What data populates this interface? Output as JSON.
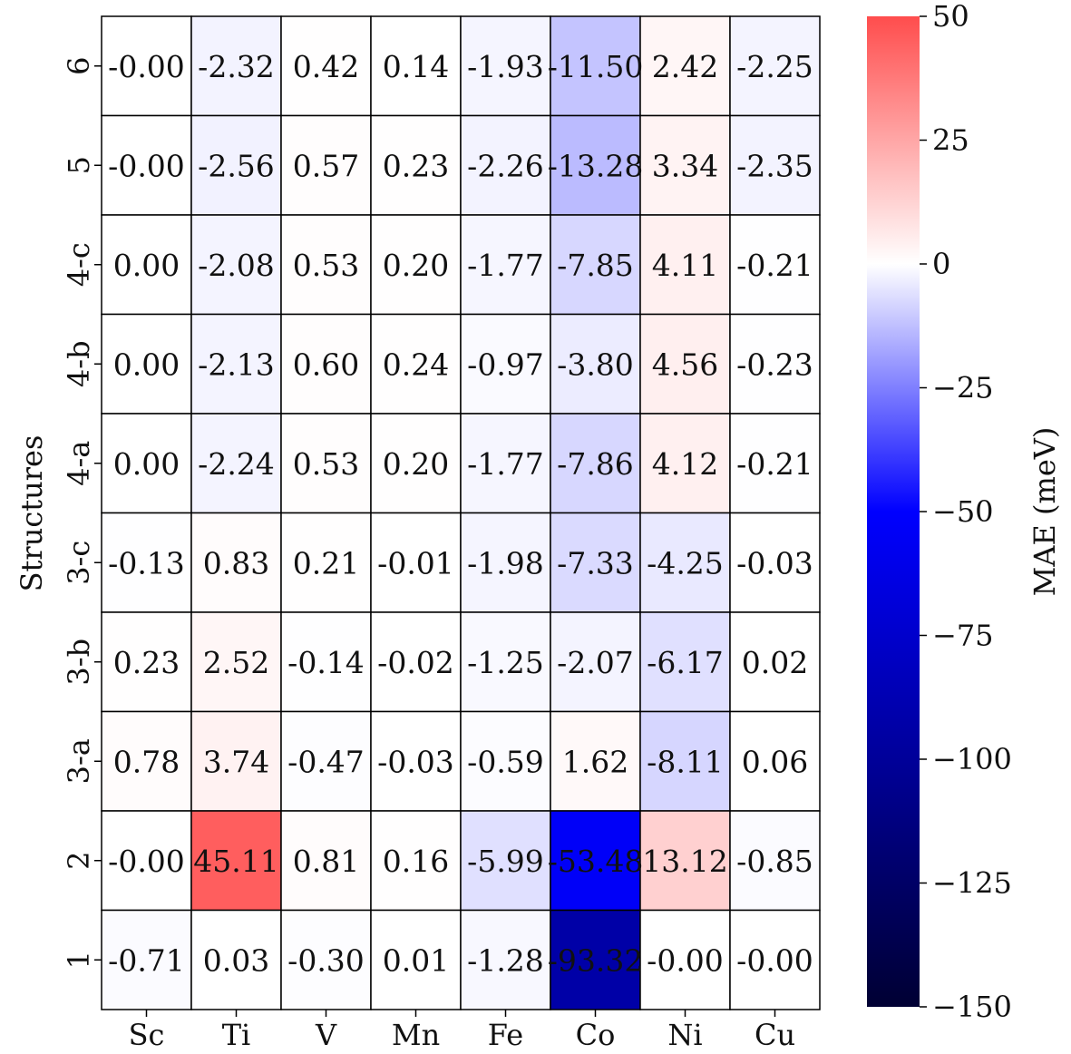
{
  "chart_data": {
    "type": "heatmap",
    "title": "",
    "xlabel": "",
    "ylabel": "Structures",
    "x_categories": [
      "Sc",
      "Ti",
      "V",
      "Mn",
      "Fe",
      "Co",
      "Ni",
      "Cu"
    ],
    "y_categories": [
      "6",
      "5",
      "4-c",
      "4-b",
      "4-a",
      "3-c",
      "3-b",
      "3-a",
      "2",
      "1"
    ],
    "values": [
      [
        "-0.00",
        "-2.32",
        "0.42",
        "0.14",
        "-1.93",
        "-11.50",
        "2.42",
        "-2.25"
      ],
      [
        "-0.00",
        "-2.56",
        "0.57",
        "0.23",
        "-2.26",
        "-13.28",
        "3.34",
        "-2.35"
      ],
      [
        "0.00",
        "-2.08",
        "0.53",
        "0.20",
        "-1.77",
        "-7.85",
        "4.11",
        "-0.21"
      ],
      [
        "0.00",
        "-2.13",
        "0.60",
        "0.24",
        "-0.97",
        "-3.80",
        "4.56",
        "-0.23"
      ],
      [
        "0.00",
        "-2.24",
        "0.53",
        "0.20",
        "-1.77",
        "-7.86",
        "4.12",
        "-0.21"
      ],
      [
        "-0.13",
        "0.83",
        "0.21",
        "-0.01",
        "-1.98",
        "-7.33",
        "-4.25",
        "-0.03"
      ],
      [
        "0.23",
        "2.52",
        "-0.14",
        "-0.02",
        "-1.25",
        "-2.07",
        "-6.17",
        "0.02"
      ],
      [
        "0.78",
        "3.74",
        "-0.47",
        "-0.03",
        "-0.59",
        "1.62",
        "-8.11",
        "0.06"
      ],
      [
        "-0.00",
        "45.11",
        "0.81",
        "0.16",
        "-5.99",
        "-53.48",
        "13.12",
        "-0.85"
      ],
      [
        "-0.71",
        "0.03",
        "-0.30",
        "0.01",
        "-1.28",
        "-93.32",
        "-0.00",
        "-0.00"
      ]
    ],
    "colorbar": {
      "label": "MAE (meV)",
      "vmin": -150,
      "vmax": 50,
      "ticks": [
        50,
        25,
        0,
        -25,
        -50,
        -75,
        -100,
        -125,
        -150
      ],
      "tick_labels": [
        "50",
        "25",
        "0",
        "−25",
        "−50",
        "−75",
        "−100",
        "−125",
        "−150"
      ],
      "colormap": "seismic",
      "colors": {
        "low": "#000033",
        "mid_low": "#0000ff",
        "center": "#ffffff",
        "high": "#ff4d4d"
      }
    }
  }
}
